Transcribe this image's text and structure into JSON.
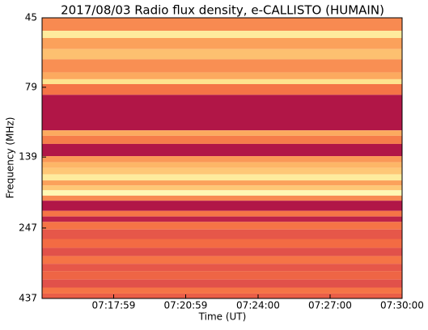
{
  "chart_data": {
    "type": "heatmap",
    "title": "2017/08/03  Radio flux density, e-CALLISTO (HUMAIN)",
    "x_label": "Time (UT)",
    "y_label": "Frequency (MHz)",
    "xlim": [
      "07:15:00",
      "07:30:00"
    ],
    "xticks": [
      "07:17:59",
      "07:20:59",
      "07:24:00",
      "07:27:00",
      "07:30:00"
    ],
    "ylim": [
      45,
      437
    ],
    "y_inverted": true,
    "y_log": true,
    "yticks": [
      45,
      79,
      139,
      247,
      437
    ],
    "y_edges": [
      45,
      50,
      53,
      58,
      63,
      70,
      74,
      77,
      84,
      112,
      117,
      125,
      138,
      145,
      152,
      160,
      168,
      175,
      182,
      190,
      198,
      215,
      225,
      235,
      250,
      270,
      290,
      310,
      330,
      350,
      375,
      400,
      420,
      437
    ],
    "values": [
      0.35,
      0.62,
      0.4,
      0.48,
      0.36,
      0.42,
      0.58,
      0.3,
      0.05,
      0.42,
      0.32,
      0.05,
      0.38,
      0.45,
      0.5,
      0.62,
      0.4,
      0.5,
      0.68,
      0.35,
      0.05,
      0.3,
      0.08,
      0.3,
      0.22,
      0.28,
      0.2,
      0.3,
      0.22,
      0.26,
      0.2,
      0.3,
      0.24
    ],
    "zlim": [
      0,
      1
    ],
    "colormap": [
      "#9e0142",
      "#d53e4f",
      "#f46d43",
      "#fdae61",
      "#fee08b",
      "#ffffbf",
      "#e6f598",
      "#abdda4"
    ]
  }
}
